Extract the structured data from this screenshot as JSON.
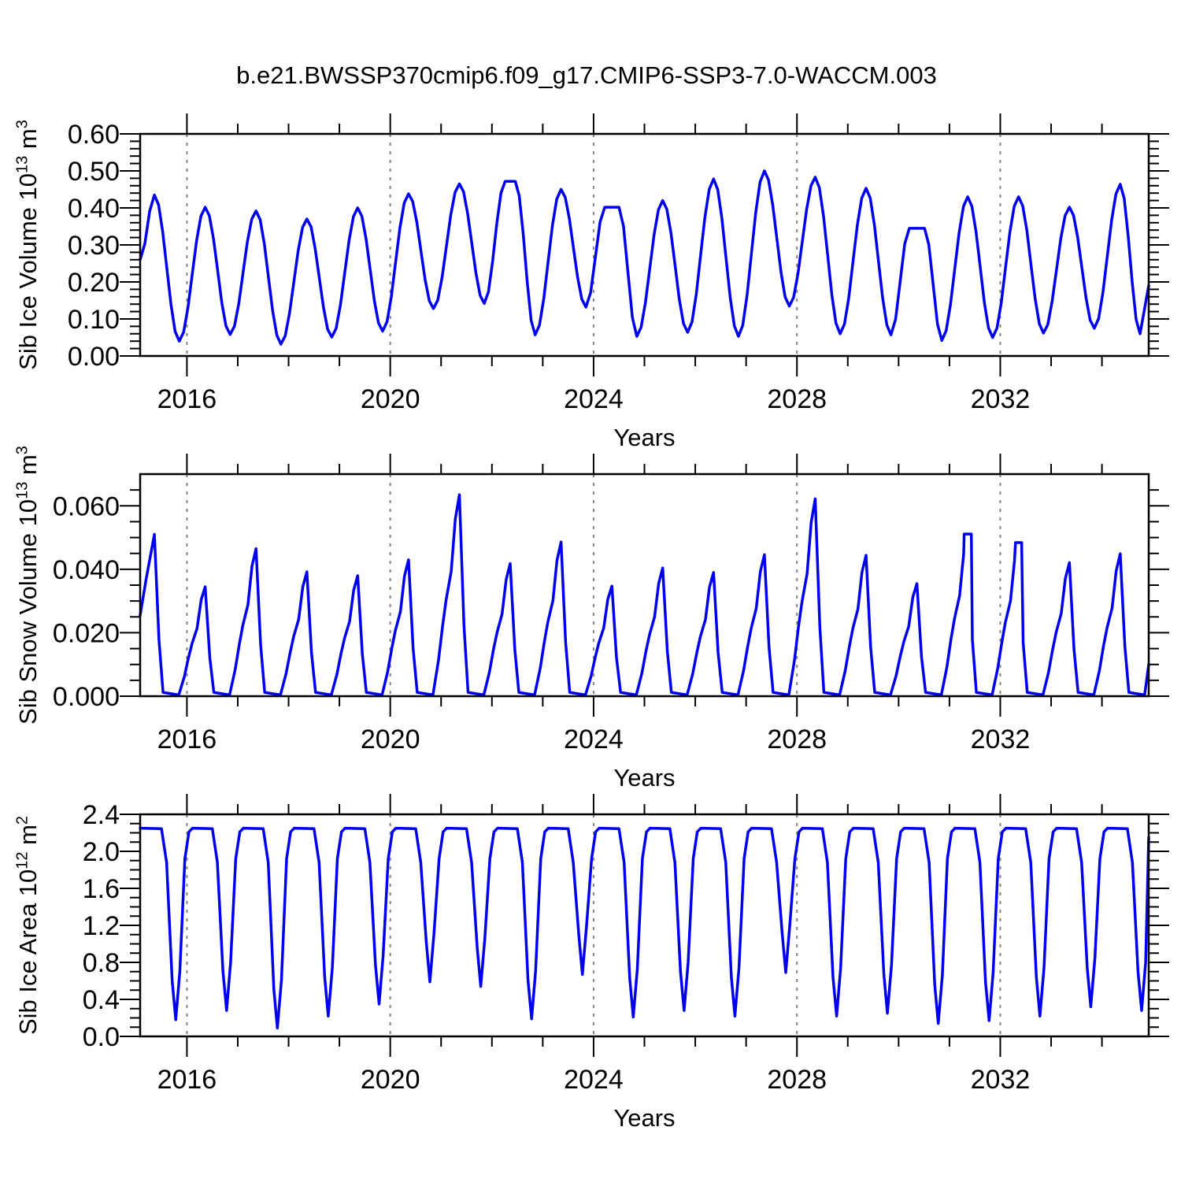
{
  "title": "b.e21.BWSSP370cmip6.f09_g17.CMIP6-SSP3-7.0-WACCM.003",
  "line_color": "#0000ee",
  "background": "#ffffff",
  "gridline_color": "#848484",
  "x_axis": {
    "label": "Years",
    "range": [
      2015.08,
      2034.92
    ],
    "major_ticks": [
      2016,
      2020,
      2024,
      2028,
      2032
    ],
    "major_tick_labels": [
      "2016",
      "2020",
      "2024",
      "2028",
      "2032"
    ],
    "minor_tick_step_years": 1,
    "gridlines_at_major": true
  },
  "chart_data": [
    {
      "type": "line",
      "panel": "ice-volume",
      "ylabel_plain": "Sib Ice Volume 10^13 m^3",
      "ylabel_parts": [
        [
          "t",
          "Sib Ice Volume 10"
        ],
        [
          "s",
          "13"
        ],
        [
          "t",
          " m"
        ],
        [
          "s",
          "3"
        ]
      ],
      "xlabel": "Years",
      "ylim": [
        0,
        0.6
      ],
      "ytick_values": [
        0.0,
        0.1,
        0.2,
        0.3,
        0.4,
        0.5,
        0.6
      ],
      "ytick_labels": [
        "0.00",
        "0.10",
        "0.20",
        "0.30",
        "0.40",
        "0.50",
        "0.60"
      ],
      "ytick_minor_step": 0.02,
      "shape": "ice_volume",
      "timing": {
        "peak_frac": 0.36,
        "min_frac": 0.85
      },
      "start_point": [
        2015.08,
        0.26
      ],
      "end_point": [
        2034.92,
        0.19
      ],
      "cycles": [
        {
          "year": 2015,
          "peak": 0.435,
          "min": 0.04
        },
        {
          "year": 2016,
          "peak": 0.402,
          "min": 0.058
        },
        {
          "year": 2017,
          "peak": 0.392,
          "min": 0.032
        },
        {
          "year": 2018,
          "peak": 0.37,
          "min": 0.051
        },
        {
          "year": 2019,
          "peak": 0.4,
          "min": 0.067
        },
        {
          "year": 2020,
          "peak": 0.438,
          "min": 0.128
        },
        {
          "year": 2021,
          "peak": 0.465,
          "min": 0.142
        },
        {
          "year": 2022,
          "peak": 0.472,
          "min": 0.057,
          "flat": 0.2
        },
        {
          "year": 2023,
          "peak": 0.45,
          "min": 0.132
        },
        {
          "year": 2024,
          "peak": 0.402,
          "min": 0.053,
          "flat": 0.28
        },
        {
          "year": 2025,
          "peak": 0.42,
          "min": 0.064
        },
        {
          "year": 2026,
          "peak": 0.478,
          "min": 0.053
        },
        {
          "year": 2027,
          "peak": 0.5,
          "min": 0.135
        },
        {
          "year": 2028,
          "peak": 0.483,
          "min": 0.06
        },
        {
          "year": 2029,
          "peak": 0.453,
          "min": 0.057
        },
        {
          "year": 2030,
          "peak": 0.345,
          "min": 0.042,
          "flat": 0.3
        },
        {
          "year": 2031,
          "peak": 0.43,
          "min": 0.05
        },
        {
          "year": 2032,
          "peak": 0.43,
          "min": 0.062
        },
        {
          "year": 2033,
          "peak": 0.402,
          "min": 0.075
        },
        {
          "year": 2034,
          "peak": 0.464,
          "min": 0.06,
          "min_x": 2034.75
        }
      ]
    },
    {
      "type": "line",
      "panel": "snow-volume",
      "ylabel_plain": "Sib Snow Volume 10^13 m^3",
      "ylabel_parts": [
        [
          "t",
          "Sib Snow Volume 10"
        ],
        [
          "s",
          "13"
        ],
        [
          "t",
          " m"
        ],
        [
          "s",
          "3"
        ]
      ],
      "xlabel": "Years",
      "ylim": [
        0,
        0.07
      ],
      "ytick_values": [
        0.0,
        0.02,
        0.04,
        0.06
      ],
      "ytick_labels": [
        "0.000",
        "0.020",
        "0.040",
        "0.060"
      ],
      "ytick_minor_step": 0.005,
      "shape": "snow_volume",
      "timing": {
        "peak_frac": 0.36,
        "zero_from_frac": 0.53,
        "zero_to_frac": 0.84
      },
      "start_point": [
        2015.08,
        0.0255
      ],
      "end_point": [
        2034.92,
        0.01
      ],
      "cycles": [
        {
          "year": 2015,
          "peak": 0.051,
          "min": 0
        },
        {
          "year": 2016,
          "peak": 0.0345,
          "min": 0
        },
        {
          "year": 2017,
          "peak": 0.0465,
          "min": 0
        },
        {
          "year": 2018,
          "peak": 0.0392,
          "min": 0
        },
        {
          "year": 2019,
          "peak": 0.038,
          "min": 0
        },
        {
          "year": 2020,
          "peak": 0.043,
          "min": 0
        },
        {
          "year": 2021,
          "peak": 0.0635,
          "min": 0
        },
        {
          "year": 2022,
          "peak": 0.0418,
          "min": 0
        },
        {
          "year": 2023,
          "peak": 0.0486,
          "min": 0
        },
        {
          "year": 2024,
          "peak": 0.0347,
          "min": 0
        },
        {
          "year": 2025,
          "peak": 0.0404,
          "min": 0
        },
        {
          "year": 2026,
          "peak": 0.039,
          "min": 0
        },
        {
          "year": 2027,
          "peak": 0.0446,
          "min": 0
        },
        {
          "year": 2028,
          "peak": 0.0622,
          "min": 0
        },
        {
          "year": 2029,
          "peak": 0.0444,
          "min": 0
        },
        {
          "year": 2030,
          "peak": 0.0355,
          "min": 0
        },
        {
          "year": 2031,
          "peak": 0.0511,
          "min": 0,
          "flat": 0.14
        },
        {
          "year": 2032,
          "peak": 0.0484,
          "min": 0,
          "flat": 0.12
        },
        {
          "year": 2033,
          "peak": 0.0421,
          "min": 0
        },
        {
          "year": 2034,
          "peak": 0.0449,
          "min": 0
        }
      ]
    },
    {
      "type": "line",
      "panel": "ice-area",
      "ylabel_plain": "Sib Ice Area 10^12 m^2",
      "ylabel_parts": [
        [
          "t",
          "Sib Ice Area 10"
        ],
        [
          "s",
          "12"
        ],
        [
          "t",
          " m"
        ],
        [
          "s",
          "2"
        ]
      ],
      "xlabel": "Years",
      "ylim": [
        0,
        2.4
      ],
      "ytick_values": [
        0.0,
        0.4,
        0.8,
        1.2,
        1.6,
        2.0,
        2.4
      ],
      "ytick_labels": [
        "0.0",
        "0.4",
        "0.8",
        "1.2",
        "1.6",
        "2.0",
        "2.4"
      ],
      "ytick_minor_step": 0.1,
      "shape": "ice_area",
      "plateau_value": 2.25,
      "timing": {
        "dip_frac": 0.78,
        "descent_start_frac": 0.5,
        "recover_frac": 1.11
      },
      "start_point": [
        2015.08,
        2.25
      ],
      "end_point": [
        2034.92,
        2.15
      ],
      "cycles": [
        {
          "year": 2015,
          "min": 0.18
        },
        {
          "year": 2016,
          "min": 0.28
        },
        {
          "year": 2017,
          "min": 0.09
        },
        {
          "year": 2018,
          "min": 0.22
        },
        {
          "year": 2019,
          "min": 0.35
        },
        {
          "year": 2020,
          "min": 0.59
        },
        {
          "year": 2021,
          "min": 0.54
        },
        {
          "year": 2022,
          "min": 0.19
        },
        {
          "year": 2023,
          "min": 0.67
        },
        {
          "year": 2024,
          "min": 0.21
        },
        {
          "year": 2025,
          "min": 0.28
        },
        {
          "year": 2026,
          "min": 0.22
        },
        {
          "year": 2027,
          "min": 0.69
        },
        {
          "year": 2028,
          "min": 0.22
        },
        {
          "year": 2029,
          "min": 0.25
        },
        {
          "year": 2030,
          "min": 0.14
        },
        {
          "year": 2031,
          "min": 0.17
        },
        {
          "year": 2032,
          "min": 0.22
        },
        {
          "year": 2033,
          "min": 0.32
        },
        {
          "year": 2034,
          "min": 0.28
        }
      ]
    }
  ]
}
